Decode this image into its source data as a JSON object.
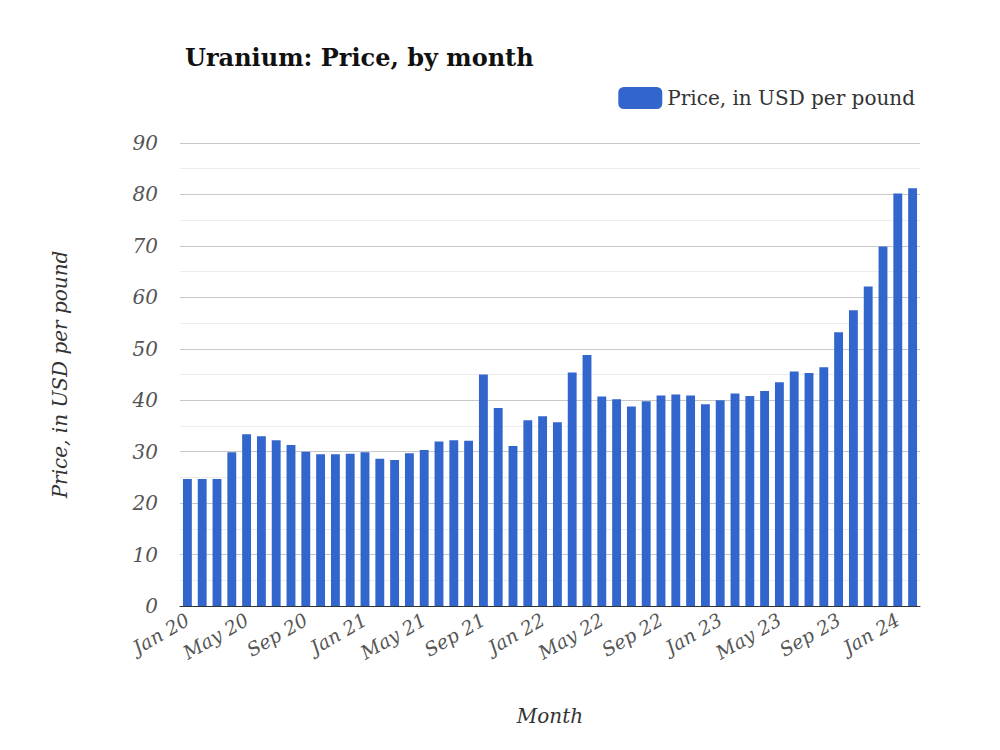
{
  "chart_data": {
    "type": "bar",
    "title": "Uranium: Price, by month",
    "x_label": "Month",
    "y_label": "Price, in USD per pound",
    "categories": [
      "Jan 20",
      null,
      null,
      null,
      "May 20",
      null,
      null,
      null,
      "Sep 20",
      null,
      null,
      null,
      "Jan 21",
      null,
      null,
      null,
      "May 21",
      null,
      null,
      null,
      "Sep 21",
      null,
      null,
      null,
      "Jan 22",
      null,
      null,
      null,
      "May 22",
      null,
      null,
      null,
      "Sep 22",
      null,
      null,
      null,
      "Jan 23",
      null,
      null,
      null,
      "May 23",
      null,
      null,
      null,
      "Sep 23",
      null,
      null,
      null,
      "Jan 24",
      null
    ],
    "series": [
      {
        "name": "Price, in USD per pound",
        "color": "#3366cc",
        "values": [
          24.7,
          24.7,
          24.7,
          29.9,
          33.4,
          33.0,
          32.2,
          31.3,
          30.0,
          29.5,
          29.5,
          29.6,
          29.9,
          28.6,
          28.4,
          29.7,
          30.3,
          32.0,
          32.2,
          32.1,
          45.0,
          38.5,
          31.1,
          36.1,
          36.9,
          35.7,
          45.4,
          48.8,
          40.7,
          40.2,
          38.8,
          39.8,
          40.9,
          41.1,
          40.9,
          39.2,
          40.0,
          41.3,
          40.8,
          41.8,
          43.5,
          45.6,
          45.3,
          46.4,
          53.2,
          57.5,
          62.1,
          69.9,
          80.2,
          81.2
        ]
      }
    ],
    "ylim": [
      0,
      90
    ],
    "yticks": [
      0,
      10,
      20,
      30,
      40,
      50,
      60,
      70,
      80,
      90
    ],
    "grid": true,
    "legend": "upper right"
  }
}
